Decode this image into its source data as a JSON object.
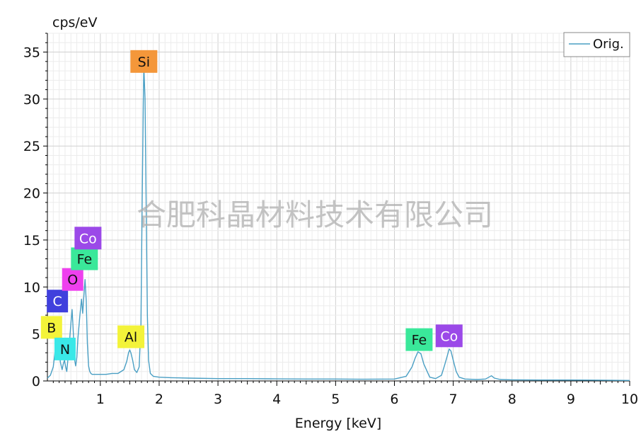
{
  "chart_data": {
    "type": "line",
    "title": "",
    "xlabel": "Energy [keV]",
    "ylabel": "cps/eV",
    "xlim": [
      0.1,
      10
    ],
    "ylim": [
      0,
      37
    ],
    "x_ticks": [
      1,
      2,
      3,
      4,
      5,
      6,
      7,
      8,
      9,
      10
    ],
    "y_ticks": [
      0,
      5,
      10,
      15,
      20,
      25,
      30,
      35
    ],
    "grid": true,
    "legend_position": "top-right",
    "series": [
      {
        "name": "Orig.",
        "color": "#4a9fc4",
        "x": [
          0.1,
          0.15,
          0.2,
          0.25,
          0.28,
          0.3,
          0.32,
          0.35,
          0.37,
          0.39,
          0.41,
          0.43,
          0.45,
          0.47,
          0.5,
          0.52,
          0.54,
          0.56,
          0.58,
          0.6,
          0.62,
          0.65,
          0.68,
          0.7,
          0.72,
          0.74,
          0.76,
          0.78,
          0.8,
          0.82,
          0.84,
          0.86,
          0.9,
          1.0,
          1.1,
          1.2,
          1.3,
          1.4,
          1.45,
          1.48,
          1.5,
          1.52,
          1.55,
          1.58,
          1.62,
          1.66,
          1.69,
          1.71,
          1.73,
          1.74,
          1.76,
          1.78,
          1.8,
          1.82,
          1.85,
          1.9,
          2.0,
          2.2,
          2.5,
          3.0,
          3.5,
          4.0,
          4.5,
          5.0,
          5.5,
          6.0,
          6.2,
          6.3,
          6.35,
          6.4,
          6.45,
          6.5,
          6.6,
          6.7,
          6.8,
          6.85,
          6.9,
          6.93,
          6.96,
          7.0,
          7.05,
          7.1,
          7.2,
          7.4,
          7.55,
          7.65,
          7.7,
          7.8,
          8.0,
          8.5,
          9.0,
          9.5,
          10.0
        ],
        "y": [
          0.3,
          0.6,
          1.5,
          4.2,
          6.0,
          4.0,
          2.0,
          1.2,
          1.8,
          2.2,
          1.5,
          1.0,
          2.4,
          3.8,
          6.2,
          7.6,
          5.2,
          2.4,
          1.6,
          2.5,
          4.6,
          6.8,
          8.7,
          7.2,
          9.0,
          10.8,
          8.5,
          4.0,
          1.6,
          1.0,
          0.8,
          0.7,
          0.7,
          0.7,
          0.7,
          0.8,
          0.8,
          1.2,
          2.1,
          3.0,
          3.3,
          3.0,
          2.2,
          1.2,
          0.9,
          1.5,
          6.0,
          18.0,
          29.5,
          33.5,
          30.0,
          18.0,
          7.0,
          2.2,
          0.8,
          0.5,
          0.4,
          0.35,
          0.3,
          0.25,
          0.25,
          0.22,
          0.2,
          0.2,
          0.18,
          0.2,
          0.5,
          1.5,
          2.4,
          3.1,
          2.9,
          1.8,
          0.4,
          0.25,
          0.6,
          1.6,
          2.7,
          3.4,
          3.2,
          2.2,
          1.0,
          0.4,
          0.2,
          0.15,
          0.2,
          0.55,
          0.3,
          0.15,
          0.12,
          0.1,
          0.1,
          0.08,
          0.05
        ]
      }
    ],
    "peak_labels": [
      {
        "text": "Si",
        "x": 1.74,
        "y": 34.0,
        "bg": "#f4973a",
        "fg": "#111111"
      },
      {
        "text": "Al",
        "x": 1.52,
        "y": 4.7,
        "bg": "#f3f33a",
        "fg": "#111111"
      },
      {
        "text": "C",
        "x": 0.27,
        "y": 8.5,
        "bg": "#4040dd",
        "fg": "#ffffff"
      },
      {
        "text": "B",
        "x": 0.17,
        "y": 5.7,
        "bg": "#f3f33a",
        "fg": "#111111"
      },
      {
        "text": "N",
        "x": 0.4,
        "y": 3.4,
        "bg": "#3ae8e8",
        "fg": "#111111"
      },
      {
        "text": "O",
        "x": 0.53,
        "y": 10.8,
        "bg": "#ee40ee",
        "fg": "#111111"
      },
      {
        "text": "Fe",
        "x": 0.73,
        "y": 13.0,
        "bg": "#3ae89a",
        "fg": "#111111"
      },
      {
        "text": "Co",
        "x": 0.79,
        "y": 15.2,
        "bg": "#9b49e8",
        "fg": "#ffffff"
      },
      {
        "text": "Fe",
        "x": 6.42,
        "y": 4.4,
        "bg": "#3ae89a",
        "fg": "#111111"
      },
      {
        "text": "Co",
        "x": 6.93,
        "y": 4.8,
        "bg": "#9b49e8",
        "fg": "#ffffff"
      }
    ],
    "watermark": "合肥科晶材料技术有限公司"
  }
}
